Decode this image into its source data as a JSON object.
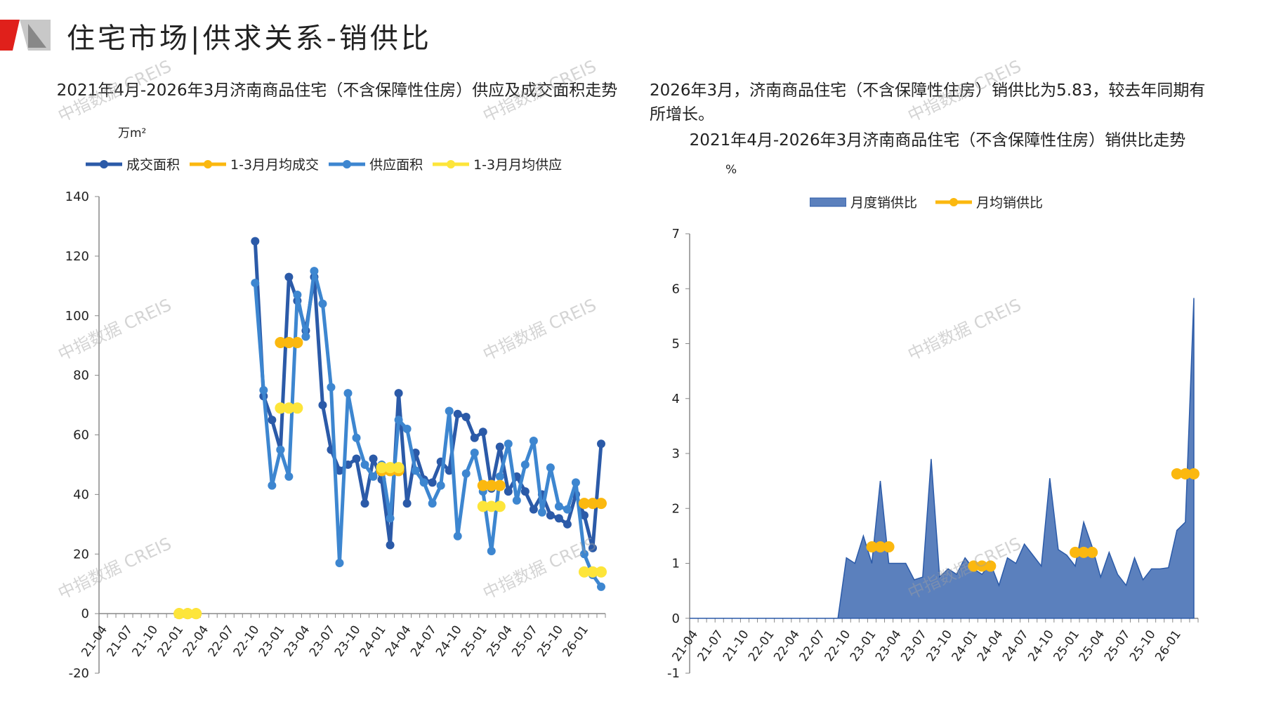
{
  "page_title": "住宅市场|供求关系-销供比",
  "watermark": "中指数据 CREIS",
  "chart_data": [
    {
      "type": "line",
      "title": "2021年4月-2026年3月济南商品住宅（不含保障性住房）供应及成交面积走势",
      "ylabel": "万m²",
      "ylim": [
        -20,
        140
      ],
      "yticks": [
        -20,
        0,
        20,
        40,
        60,
        80,
        100,
        120,
        140
      ],
      "x_start": "21-04",
      "n_months": 60,
      "data_start_index": 18,
      "xtick_labels": [
        "21-04",
        "21-07",
        "21-10",
        "22-01",
        "22-04",
        "22-07",
        "22-10",
        "23-01",
        "23-04",
        "23-07",
        "23-10",
        "24-01",
        "24-04",
        "24-07",
        "24-10",
        "25-01",
        "25-04",
        "25-07",
        "25-10",
        "26-01"
      ],
      "series": [
        {
          "name": "成交面积",
          "color": "#2b5aa8",
          "values": [
            125,
            73,
            65,
            55,
            113,
            105,
            95,
            113,
            70,
            55,
            48,
            50,
            52,
            37,
            52,
            45,
            23,
            74,
            37,
            54,
            45,
            44,
            51,
            48,
            67,
            66,
            59,
            61,
            42,
            56,
            41,
            46,
            41,
            35,
            40,
            33,
            32,
            30,
            40,
            33,
            22,
            57
          ]
        },
        {
          "name": "供应面积",
          "color": "#3d86d0",
          "values": [
            111,
            75,
            43,
            55,
            46,
            107,
            93,
            115,
            104,
            76,
            17,
            74,
            59,
            50,
            46,
            50,
            32,
            65,
            62,
            48,
            44,
            37,
            43,
            68,
            26,
            47,
            54,
            41,
            21,
            46,
            57,
            38,
            50,
            58,
            34,
            49,
            36,
            35,
            44,
            20,
            13,
            9
          ]
        },
        {
          "name": "1-3月月均成交",
          "color": "#fbb80f",
          "groups": [
            {
              "start_index": 9,
              "value": 0
            },
            {
              "start_index": 21,
              "value": 91
            },
            {
              "start_index": 33,
              "value": 48
            },
            {
              "start_index": 45,
              "value": 43
            },
            {
              "start_index": 57,
              "value": 37
            }
          ]
        },
        {
          "name": "1-3月月均供应",
          "color": "#fde53a",
          "groups": [
            {
              "start_index": 9,
              "value": 0
            },
            {
              "start_index": 21,
              "value": 69
            },
            {
              "start_index": 33,
              "value": 49
            },
            {
              "start_index": 45,
              "value": 36
            },
            {
              "start_index": 57,
              "value": 14
            }
          ]
        }
      ]
    },
    {
      "type": "area",
      "intro": "2026年3月，济南商品住宅（不含保障性住房）销供比为5.83，较去年同期有所增长。",
      "title": "2021年4月-2026年3月济南商品住宅（不含保障性住房）销供比走势",
      "ylabel": "%",
      "ylim": [
        -1,
        7
      ],
      "yticks": [
        -1,
        0,
        1,
        2,
        3,
        4,
        5,
        6,
        7
      ],
      "x_start": "21-04",
      "n_months": 60,
      "data_start_index": 18,
      "xtick_labels": [
        "21-04",
        "21-07",
        "21-10",
        "22-01",
        "22-04",
        "22-07",
        "22-10",
        "23-01",
        "23-04",
        "23-07",
        "23-10",
        "24-01",
        "24-04",
        "24-07",
        "24-10",
        "25-01",
        "25-04",
        "25-07",
        "25-10",
        "26-01"
      ],
      "series": [
        {
          "name": "月度销供比",
          "color": "#5b80bd",
          "values": [
            1.1,
            1.0,
            1.5,
            1.0,
            2.5,
            1.0,
            1.0,
            1.0,
            0.7,
            0.75,
            2.9,
            0.75,
            0.9,
            0.8,
            1.1,
            0.9,
            0.8,
            1.0,
            0.6,
            1.1,
            1.0,
            1.35,
            1.15,
            0.95,
            2.55,
            1.25,
            1.15,
            0.95,
            1.75,
            1.3,
            0.75,
            1.2,
            0.8,
            0.6,
            1.1,
            0.7,
            0.9,
            0.9,
            0.92,
            1.6,
            1.75,
            5.83
          ]
        },
        {
          "name": "月均销供比",
          "color": "#fbb80f",
          "groups": [
            {
              "start_index": 21,
              "value": 1.3
            },
            {
              "start_index": 33,
              "value": 0.95
            },
            {
              "start_index": 45,
              "value": 1.2
            },
            {
              "start_index": 57,
              "value": 2.63
            }
          ]
        }
      ]
    }
  ]
}
